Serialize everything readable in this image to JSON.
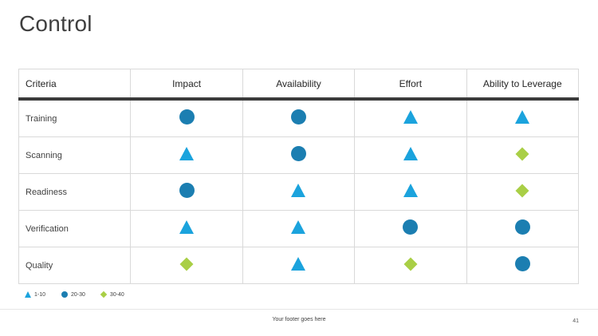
{
  "title": "Control",
  "table": {
    "headers": [
      "Criteria",
      "Impact",
      "Availability",
      "Effort",
      "Ability to Leverage"
    ],
    "rows": [
      {
        "label": "Training",
        "cells": [
          "circle",
          "circle",
          "triangle",
          "triangle"
        ]
      },
      {
        "label": "Scanning",
        "cells": [
          "triangle",
          "circle",
          "triangle",
          "diamond"
        ]
      },
      {
        "label": "Readiness",
        "cells": [
          "circle",
          "triangle",
          "triangle",
          "diamond"
        ]
      },
      {
        "label": "Verification",
        "cells": [
          "triangle",
          "triangle",
          "circle",
          "circle"
        ]
      },
      {
        "label": "Quality",
        "cells": [
          "diamond",
          "triangle",
          "diamond",
          "circle"
        ]
      }
    ]
  },
  "legend": [
    {
      "shape": "triangle",
      "label": "1-10"
    },
    {
      "shape": "circle",
      "label": "20-30"
    },
    {
      "shape": "diamond",
      "label": "30-40"
    }
  ],
  "colors": {
    "triangle": "#1ba3dd",
    "circle": "#1b7eb1",
    "diamond": "#a9cf46"
  },
  "footer": {
    "text": "Your footer goes here",
    "page_number": "41"
  }
}
